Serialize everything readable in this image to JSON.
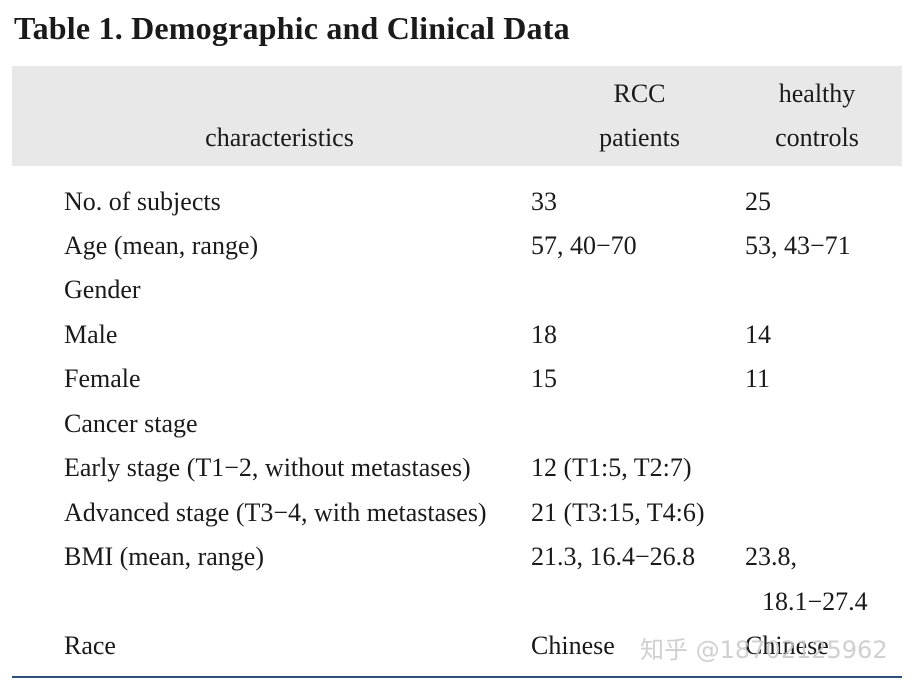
{
  "title": "Table 1.  Demographic and Clinical Data",
  "header": {
    "characteristics": "characteristics",
    "rcc_line1": "RCC",
    "rcc_line2": "patients",
    "healthy_line1": "healthy",
    "healthy_line2": "controls"
  },
  "rows": [
    {
      "label": "No. of subjects",
      "rcc": "33",
      "healthy": "25"
    },
    {
      "label": "Age (mean, range)",
      "rcc": "57, 40−70",
      "healthy": "53, 43−71"
    },
    {
      "label": "Gender",
      "rcc": "",
      "healthy": ""
    },
    {
      "label": "Male",
      "rcc": "18",
      "healthy": "14"
    },
    {
      "label": "Female",
      "rcc": "15",
      "healthy": "11"
    },
    {
      "label": "Cancer stage",
      "rcc": "",
      "healthy": ""
    },
    {
      "label": "Early stage (T1−2, without metastases)",
      "rcc": "12 (T1:5, T2:7)",
      "healthy": ""
    },
    {
      "label": "Advanced stage (T3−4, with metastases)",
      "rcc": "21 (T3:15, T4:6)",
      "healthy": ""
    },
    {
      "label": "BMI (mean, range)",
      "rcc": "21.3, 16.4−26.8",
      "healthy": "23.8,"
    },
    {
      "label": "",
      "rcc": "",
      "healthy": "18.1−27.4"
    },
    {
      "label": "Race",
      "rcc": "Chinese",
      "healthy": "Chinese"
    }
  ],
  "watermark": "知乎 @18702125962"
}
